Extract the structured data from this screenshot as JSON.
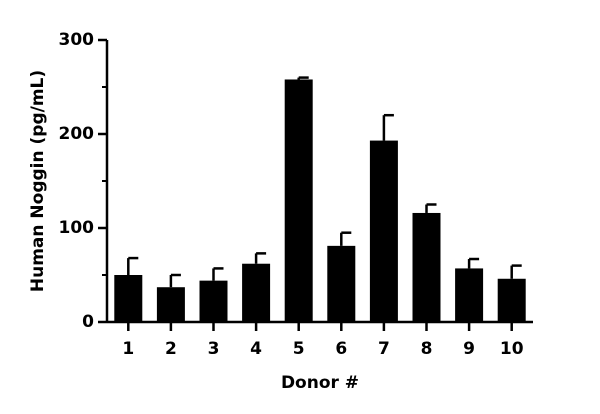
{
  "chart_data": {
    "type": "bar",
    "x_label": "Donor #",
    "y_label": "Human Noggin (pg/mL)",
    "categories": [
      "1",
      "2",
      "3",
      "4",
      "5",
      "6",
      "7",
      "8",
      "9",
      "10"
    ],
    "values": [
      50,
      37,
      44,
      62,
      258,
      81,
      193,
      116,
      57,
      46
    ],
    "errors": [
      18,
      13,
      13,
      11,
      2,
      14,
      27,
      9,
      10,
      14
    ],
    "color": "#000000",
    "ylim": [
      0,
      300
    ],
    "yticks": [
      0,
      100,
      200,
      300
    ],
    "minor_yticks": [
      50,
      150,
      250
    ],
    "grid": false
  }
}
